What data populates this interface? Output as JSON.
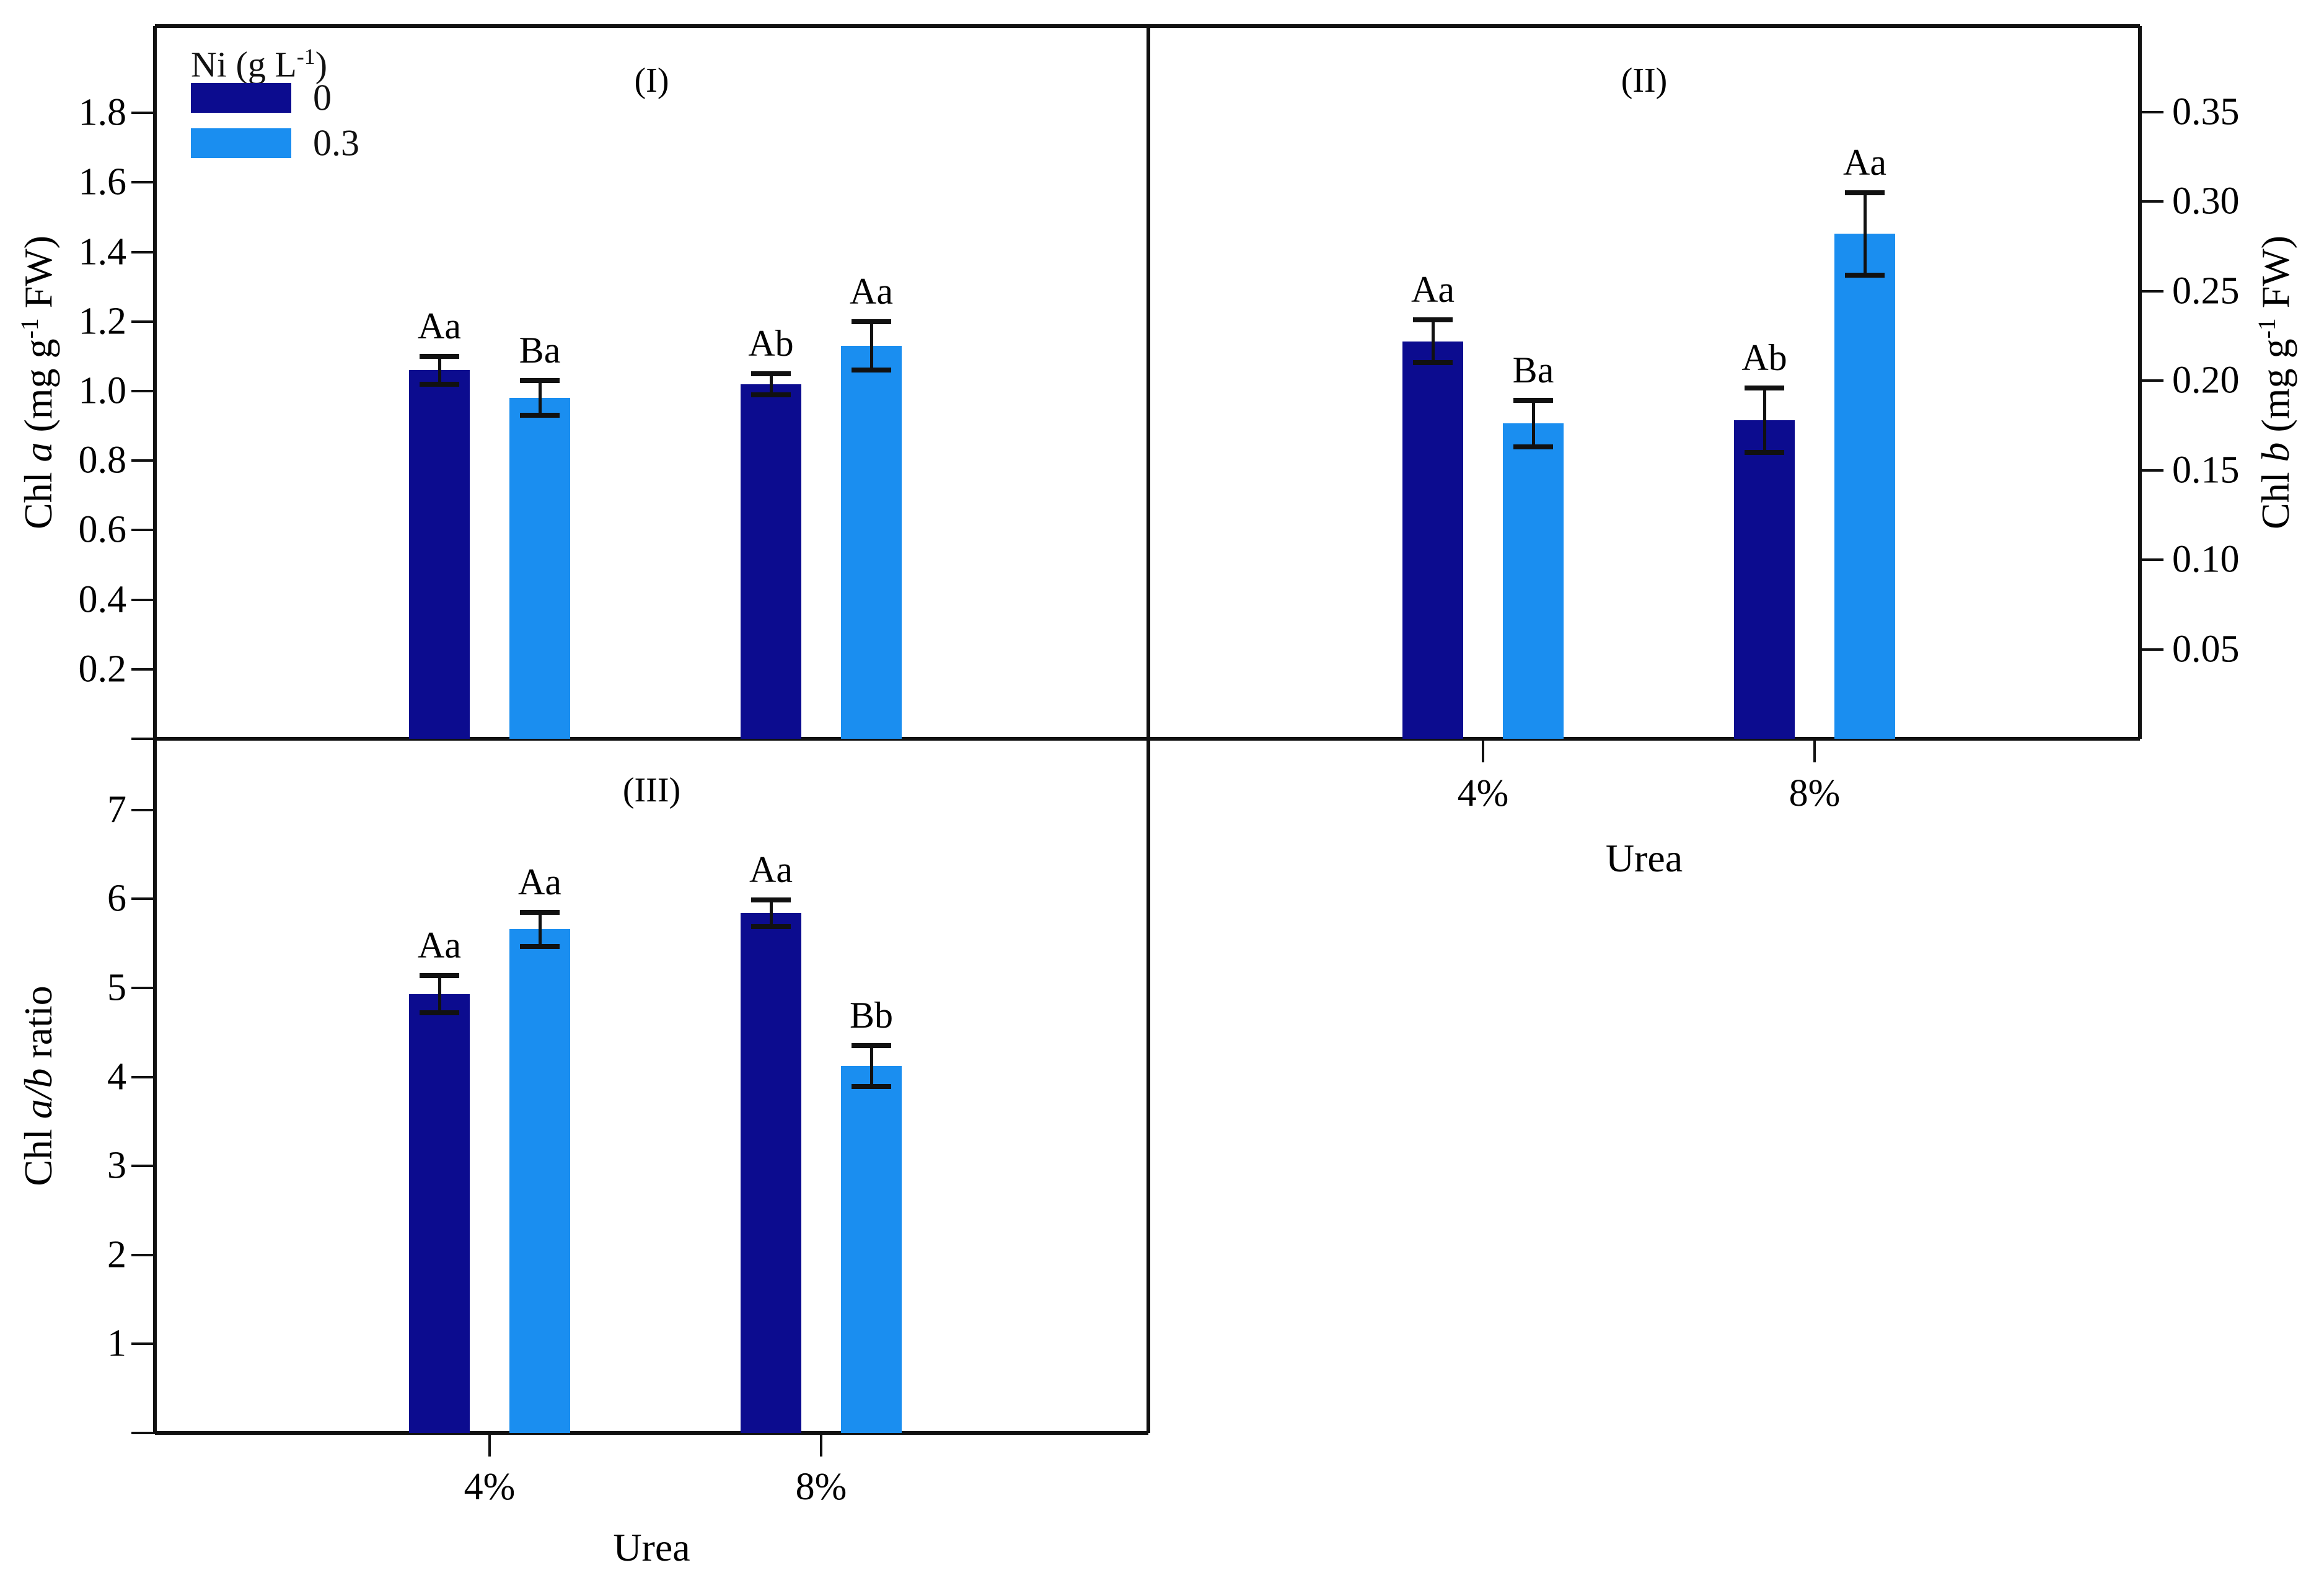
{
  "figure": {
    "background": "#ffffff",
    "axis_color": "#111111",
    "legend": {
      "title_text": "Ni (g L-1)",
      "title_parts": [
        {
          "text": "Ni (g L"
        },
        {
          "text": "-1",
          "style": "sup"
        },
        {
          "text": ")"
        }
      ],
      "entries": [
        {
          "label": "0",
          "color": "#0c0c8f"
        },
        {
          "label": "0.3",
          "color": "#1a8ef0"
        }
      ]
    }
  },
  "chart_data": [
    {
      "type": "bar",
      "panel_title": "(I)",
      "categories": [
        "4%",
        "8%"
      ],
      "xlabel": "Urea",
      "show_x_labels": false,
      "ylabel": "Chl a (mg g-1 FW)",
      "ylabel_parts": [
        {
          "text": "Chl "
        },
        {
          "text": "a",
          "style": "italic"
        },
        {
          "text": " (mg g"
        },
        {
          "text": "-1",
          "style": "sup"
        },
        {
          "text": " FW)"
        }
      ],
      "axis_side": "left",
      "ylim": [
        0,
        2.05
      ],
      "yticks": [
        0.2,
        0.4,
        0.6,
        0.8,
        1.0,
        1.2,
        1.4,
        1.6,
        1.8
      ],
      "ytick_decimals": 1,
      "grid": false,
      "legend_position": "top-left-inside",
      "series": [
        {
          "name": "0",
          "color": "#0c0c8f",
          "values": [
            1.06,
            1.02
          ],
          "errors": [
            0.04,
            0.03
          ],
          "labels": [
            "Aa",
            "Ab"
          ]
        },
        {
          "name": "0.3",
          "color": "#1a8ef0",
          "values": [
            0.98,
            1.13
          ],
          "errors": [
            0.05,
            0.07
          ],
          "labels": [
            "Ba",
            "Aa"
          ]
        }
      ]
    },
    {
      "type": "bar",
      "panel_title": "(II)",
      "categories": [
        "4%",
        "8%"
      ],
      "xlabel": "Urea",
      "show_x_labels": true,
      "ylabel": "Chl b (mg g-1 FW)",
      "ylabel_parts": [
        {
          "text": "Chl "
        },
        {
          "text": "b",
          "style": "italic"
        },
        {
          "text": " (mg g"
        },
        {
          "text": "-1",
          "style": "sup"
        },
        {
          "text": " FW)"
        }
      ],
      "axis_side": "right",
      "ylim": [
        0,
        0.398
      ],
      "yticks": [
        0.05,
        0.1,
        0.15,
        0.2,
        0.25,
        0.3,
        0.35
      ],
      "ytick_decimals": 2,
      "grid": false,
      "series": [
        {
          "name": "0",
          "color": "#0c0c8f",
          "values": [
            0.222,
            0.178
          ],
          "errors": [
            0.012,
            0.018
          ],
          "labels": [
            "Aa",
            "Ab"
          ]
        },
        {
          "name": "0.3",
          "color": "#1a8ef0",
          "values": [
            0.176,
            0.282
          ],
          "errors": [
            0.013,
            0.023
          ],
          "labels": [
            "Ba",
            "Aa"
          ]
        }
      ]
    },
    {
      "type": "bar",
      "panel_title": "(III)",
      "categories": [
        "4%",
        "8%"
      ],
      "xlabel": "Urea",
      "show_x_labels": true,
      "ylabel": "Chl a/b ratio",
      "ylabel_parts": [
        {
          "text": "Chl "
        },
        {
          "text": "a/b",
          "style": "italic"
        },
        {
          "text": " ratio"
        }
      ],
      "axis_side": "left",
      "ylim": [
        0,
        7.8
      ],
      "yticks": [
        1,
        2,
        3,
        4,
        5,
        6,
        7
      ],
      "ytick_decimals": 0,
      "grid": false,
      "series": [
        {
          "name": "0",
          "color": "#0c0c8f",
          "values": [
            4.93,
            5.84
          ],
          "errors": [
            0.21,
            0.15
          ],
          "labels": [
            "Aa",
            "Aa"
          ]
        },
        {
          "name": "0.3",
          "color": "#1a8ef0",
          "values": [
            5.66,
            4.12
          ],
          "errors": [
            0.19,
            0.23
          ],
          "labels": [
            "Aa",
            "Bb"
          ]
        }
      ]
    }
  ]
}
